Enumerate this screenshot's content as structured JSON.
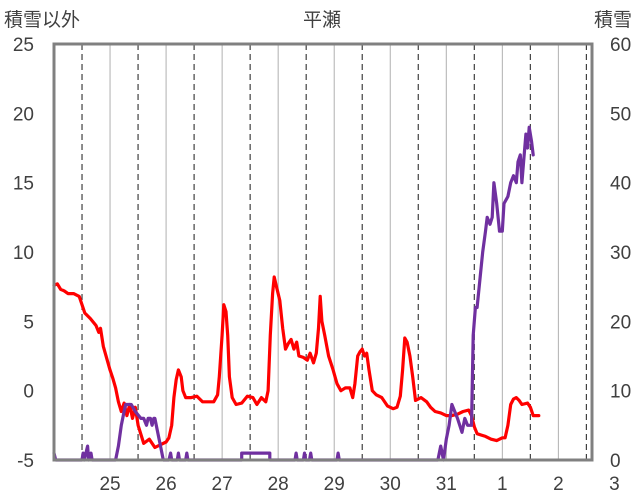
{
  "chart_data": {
    "type": "line",
    "title": "平瀬",
    "left_axis_label": "積雪以外",
    "right_axis_label": "積雪",
    "x_tick_labels": [
      "25",
      "26",
      "27",
      "28",
      "29",
      "30",
      "31",
      "1",
      "2",
      "3"
    ],
    "left_ylim": [
      -5,
      25
    ],
    "left_yticks": [
      "25",
      "20",
      "15",
      "10",
      "5",
      "0",
      "-5"
    ],
    "right_ylim": [
      0,
      60
    ],
    "right_yticks": [
      "60",
      "50",
      "40",
      "30",
      "20",
      "10",
      "0"
    ],
    "x_domain_days": [
      0,
      9.6
    ],
    "grid": "vertical dashed at day boundaries, solid vertical at noon",
    "series": [
      {
        "axis": "left",
        "color": "#ff0000",
        "points": [
          [
            0.0,
            7.6
          ],
          [
            0.06,
            7.7
          ],
          [
            0.12,
            7.3
          ],
          [
            0.18,
            7.2
          ],
          [
            0.25,
            7.0
          ],
          [
            0.35,
            7.0
          ],
          [
            0.45,
            6.8
          ],
          [
            0.55,
            5.6
          ],
          [
            0.65,
            5.2
          ],
          [
            0.75,
            4.7
          ],
          [
            0.8,
            4.2
          ],
          [
            0.83,
            4.5
          ],
          [
            0.88,
            3.2
          ],
          [
            1.0,
            1.5
          ],
          [
            1.05,
            0.9
          ],
          [
            1.1,
            0.2
          ],
          [
            1.15,
            -0.8
          ],
          [
            1.2,
            -1.5
          ],
          [
            1.25,
            -0.9
          ],
          [
            1.3,
            -1.8
          ],
          [
            1.35,
            -1.0
          ],
          [
            1.4,
            -2.0
          ],
          [
            1.45,
            -1.2
          ],
          [
            1.5,
            -2.5
          ],
          [
            1.6,
            -3.8
          ],
          [
            1.7,
            -3.5
          ],
          [
            1.8,
            -4.1
          ],
          [
            1.9,
            -3.9
          ],
          [
            2.0,
            -3.7
          ],
          [
            2.05,
            -3.4
          ],
          [
            2.1,
            -2.5
          ],
          [
            2.14,
            -0.5
          ],
          [
            2.18,
            0.8
          ],
          [
            2.22,
            1.5
          ],
          [
            2.27,
            1.0
          ],
          [
            2.3,
            0.0
          ],
          [
            2.35,
            -0.5
          ],
          [
            2.45,
            -0.5
          ],
          [
            2.55,
            -0.4
          ],
          [
            2.65,
            -0.8
          ],
          [
            2.75,
            -0.8
          ],
          [
            2.85,
            -0.8
          ],
          [
            2.92,
            -0.3
          ],
          [
            2.95,
            1.0
          ],
          [
            3.0,
            4.0
          ],
          [
            3.03,
            6.2
          ],
          [
            3.07,
            5.7
          ],
          [
            3.1,
            4.0
          ],
          [
            3.13,
            1.0
          ],
          [
            3.18,
            -0.5
          ],
          [
            3.25,
            -1.0
          ],
          [
            3.35,
            -0.9
          ],
          [
            3.45,
            -0.4
          ],
          [
            3.55,
            -0.5
          ],
          [
            3.62,
            -1.0
          ],
          [
            3.7,
            -0.5
          ],
          [
            3.78,
            -0.8
          ],
          [
            3.82,
            0.0
          ],
          [
            3.86,
            4.0
          ],
          [
            3.9,
            7.0
          ],
          [
            3.93,
            8.2
          ],
          [
            3.97,
            7.5
          ],
          [
            4.03,
            6.5
          ],
          [
            4.08,
            4.5
          ],
          [
            4.13,
            3.0
          ],
          [
            4.18,
            3.4
          ],
          [
            4.23,
            3.7
          ],
          [
            4.28,
            3.0
          ],
          [
            4.33,
            3.5
          ],
          [
            4.37,
            2.5
          ],
          [
            4.45,
            2.4
          ],
          [
            4.52,
            2.2
          ],
          [
            4.57,
            2.7
          ],
          [
            4.63,
            2.0
          ],
          [
            4.68,
            2.7
          ],
          [
            4.72,
            4.5
          ],
          [
            4.75,
            6.8
          ],
          [
            4.78,
            5.0
          ],
          [
            4.83,
            4.0
          ],
          [
            4.9,
            2.5
          ],
          [
            4.98,
            1.5
          ],
          [
            5.05,
            0.5
          ],
          [
            5.12,
            0.0
          ],
          [
            5.2,
            0.2
          ],
          [
            5.28,
            0.2
          ],
          [
            5.33,
            -0.5
          ],
          [
            5.37,
            0.5
          ],
          [
            5.42,
            2.5
          ],
          [
            5.46,
            2.8
          ],
          [
            5.5,
            3.0
          ],
          [
            5.54,
            2.5
          ],
          [
            5.58,
            2.7
          ],
          [
            5.62,
            1.5
          ],
          [
            5.68,
            0.0
          ],
          [
            5.75,
            -0.3
          ],
          [
            5.85,
            -0.5
          ],
          [
            5.95,
            -1.1
          ],
          [
            6.05,
            -1.3
          ],
          [
            6.12,
            -1.2
          ],
          [
            6.18,
            -0.4
          ],
          [
            6.22,
            1.5
          ],
          [
            6.26,
            3.8
          ],
          [
            6.3,
            3.5
          ],
          [
            6.35,
            2.5
          ],
          [
            6.4,
            1.0
          ],
          [
            6.45,
            -0.7
          ],
          [
            6.55,
            -0.5
          ],
          [
            6.65,
            -0.8
          ],
          [
            6.72,
            -1.2
          ],
          [
            6.8,
            -1.5
          ],
          [
            6.9,
            -1.6
          ],
          [
            7.0,
            -1.8
          ],
          [
            7.1,
            -1.8
          ],
          [
            7.2,
            -1.7
          ],
          [
            7.3,
            -1.5
          ],
          [
            7.4,
            -1.4
          ],
          [
            7.45,
            -1.8
          ],
          [
            7.5,
            -2.6
          ],
          [
            7.55,
            -3.1
          ],
          [
            7.62,
            -3.2
          ],
          [
            7.7,
            -3.3
          ],
          [
            7.8,
            -3.5
          ],
          [
            7.9,
            -3.6
          ],
          [
            8.0,
            -3.4
          ],
          [
            8.05,
            -3.4
          ],
          [
            8.1,
            -2.5
          ],
          [
            8.15,
            -1.0
          ],
          [
            8.2,
            -0.6
          ],
          [
            8.25,
            -0.5
          ],
          [
            8.3,
            -0.7
          ],
          [
            8.35,
            -1.0
          ],
          [
            8.45,
            -0.9
          ],
          [
            8.5,
            -1.2
          ],
          [
            8.55,
            -1.8
          ],
          [
            8.65,
            -1.8
          ]
        ]
      },
      {
        "axis": "right",
        "color": "#7030a0",
        "points": [
          [
            0.0,
            1
          ],
          [
            0.03,
            0
          ],
          [
            0.5,
            0
          ],
          [
            0.52,
            1
          ],
          [
            0.54,
            0
          ],
          [
            0.6,
            2
          ],
          [
            0.62,
            0
          ],
          [
            0.66,
            1
          ],
          [
            0.68,
            0
          ],
          [
            1.1,
            0
          ],
          [
            1.15,
            2
          ],
          [
            1.2,
            5
          ],
          [
            1.25,
            7
          ],
          [
            1.28,
            8
          ],
          [
            1.33,
            8
          ],
          [
            1.38,
            8
          ],
          [
            1.45,
            7
          ],
          [
            1.55,
            6
          ],
          [
            1.6,
            6
          ],
          [
            1.65,
            5
          ],
          [
            1.68,
            6
          ],
          [
            1.72,
            6
          ],
          [
            1.75,
            5
          ],
          [
            1.78,
            6
          ],
          [
            1.8,
            6
          ],
          [
            1.85,
            4
          ],
          [
            1.9,
            2
          ],
          [
            1.95,
            0
          ],
          [
            2.05,
            0
          ],
          [
            2.08,
            1
          ],
          [
            2.1,
            0
          ],
          [
            2.2,
            0
          ],
          [
            2.22,
            1
          ],
          [
            2.24,
            0
          ],
          [
            2.35,
            0
          ],
          [
            2.37,
            1
          ],
          [
            2.39,
            0
          ],
          [
            3.35,
            0
          ],
          [
            3.35,
            1
          ],
          [
            3.85,
            1
          ],
          [
            3.85,
            0
          ],
          [
            4.3,
            0
          ],
          [
            4.32,
            1
          ],
          [
            4.34,
            0
          ],
          [
            4.45,
            0
          ],
          [
            4.47,
            1
          ],
          [
            4.49,
            0
          ],
          [
            4.56,
            0
          ],
          [
            4.58,
            1
          ],
          [
            4.6,
            0
          ],
          [
            5.05,
            0
          ],
          [
            5.07,
            1
          ],
          [
            5.09,
            0
          ],
          [
            6.85,
            0
          ],
          [
            6.9,
            2
          ],
          [
            6.95,
            0
          ],
          [
            7.0,
            3
          ],
          [
            7.05,
            5
          ],
          [
            7.1,
            8
          ],
          [
            7.2,
            6
          ],
          [
            7.28,
            4
          ],
          [
            7.33,
            6
          ],
          [
            7.38,
            5
          ],
          [
            7.45,
            5
          ],
          [
            7.48,
            18
          ],
          [
            7.52,
            22
          ],
          [
            7.55,
            22
          ],
          [
            7.6,
            26
          ],
          [
            7.65,
            30
          ],
          [
            7.7,
            33
          ],
          [
            7.73,
            35
          ],
          [
            7.78,
            34
          ],
          [
            7.82,
            35
          ],
          [
            7.85,
            40
          ],
          [
            7.9,
            37
          ],
          [
            7.95,
            33
          ],
          [
            8.0,
            33
          ],
          [
            8.03,
            37
          ],
          [
            8.1,
            38
          ],
          [
            8.15,
            40
          ],
          [
            8.2,
            41
          ],
          [
            8.25,
            40
          ],
          [
            8.28,
            43
          ],
          [
            8.32,
            44
          ],
          [
            8.35,
            40
          ],
          [
            8.38,
            43
          ],
          [
            8.42,
            47
          ],
          [
            8.45,
            45
          ],
          [
            8.48,
            48
          ],
          [
            8.52,
            46
          ],
          [
            8.55,
            44
          ]
        ]
      }
    ]
  }
}
